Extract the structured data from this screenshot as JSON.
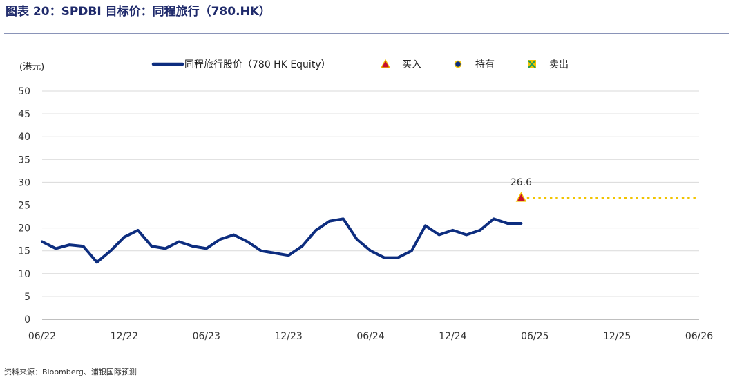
{
  "figure_title": "图表 20：SPDBI 目标价：同程旅行（780.HK）",
  "source_note": "资料来源：Bloomberg、浦银国际预测",
  "colors": {
    "price_line": "#0d2d7f",
    "target_dots": "#f2c400",
    "grid": "#d9d9d9",
    "title": "#1f2a6b"
  },
  "chart_data": {
    "type": "line",
    "title": "",
    "ylabel": "(港元)",
    "xlabel": "",
    "ylim": [
      0,
      50
    ],
    "yticks": [
      0,
      5,
      10,
      15,
      20,
      25,
      30,
      35,
      40,
      45,
      50
    ],
    "xlim": [
      "2022-06",
      "2026-06"
    ],
    "xtick_labels": [
      "06/22",
      "12/22",
      "06/23",
      "12/23",
      "06/24",
      "12/24",
      "06/25",
      "12/25",
      "06/26"
    ],
    "grid": "horizontal",
    "legend": {
      "placement": "top",
      "entries": [
        {
          "label": "同程旅行股价（780 HK Equity）",
          "marker": "line"
        },
        {
          "label": "买入",
          "marker": "triangle-up"
        },
        {
          "label": "持有",
          "marker": "circle"
        },
        {
          "label": "卖出",
          "marker": "x-square"
        }
      ]
    },
    "series": [
      {
        "name": "同程旅行股价（780 HK Equity）",
        "x": [
          "2022-06",
          "2022-07",
          "2022-08",
          "2022-09",
          "2022-10",
          "2022-11",
          "2022-12",
          "2023-01",
          "2023-02",
          "2023-03",
          "2023-04",
          "2023-05",
          "2023-06",
          "2023-07",
          "2023-08",
          "2023-09",
          "2023-10",
          "2023-11",
          "2023-12",
          "2024-01",
          "2024-02",
          "2024-03",
          "2024-04",
          "2024-05",
          "2024-06",
          "2024-07",
          "2024-08",
          "2024-09",
          "2024-10",
          "2024-11",
          "2024-12",
          "2025-01",
          "2025-02",
          "2025-03",
          "2025-04",
          "2025-05"
        ],
        "values": [
          17.0,
          15.5,
          16.3,
          16.0,
          12.5,
          15.0,
          18.0,
          19.5,
          16.0,
          15.5,
          17.0,
          16.0,
          15.5,
          17.5,
          18.5,
          17.0,
          15.0,
          14.5,
          14.0,
          16.0,
          19.5,
          21.5,
          22.0,
          17.5,
          15.0,
          13.5,
          13.5,
          15.0,
          20.5,
          18.5,
          19.5,
          18.5,
          19.5,
          22.0,
          21.0,
          21.0
        ]
      }
    ],
    "rating_markers": [
      {
        "date": "2025-05",
        "rating": "买入",
        "target": 26.6,
        "label": "26.6"
      }
    ],
    "target_line": {
      "from": "2025-05",
      "to": "2026-06",
      "value": 26.6,
      "style": "dotted"
    }
  }
}
